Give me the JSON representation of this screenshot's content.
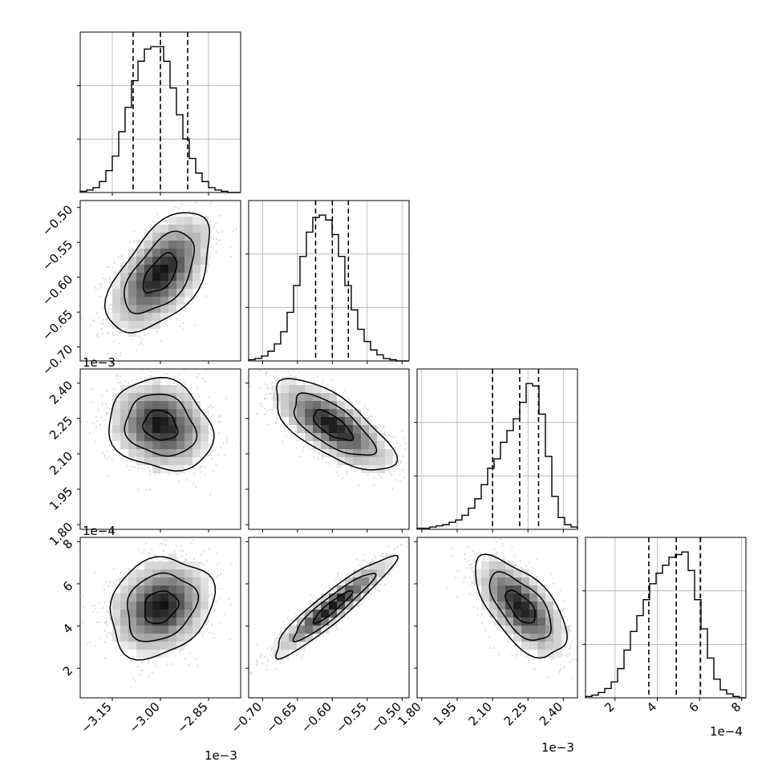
{
  "chart_data": {
    "type": "corner",
    "description_free": true,
    "parameters": [
      {
        "range": [
          -3.25,
          -2.75
        ],
        "ticks": [
          -3.15,
          -3.0,
          -2.85
        ],
        "tick_labels": [
          "−3.15",
          "−3.00",
          "−2.85"
        ],
        "offset": "1e−3",
        "quantiles": [
          -3.085,
          -3.0,
          -2.915
        ],
        "hist": [
          1,
          2,
          4,
          9,
          18,
          30,
          50,
          70,
          92,
          108,
          118,
          120,
          120,
          108,
          86,
          64,
          44,
          28,
          16,
          9,
          4,
          2,
          1,
          0,
          0
        ]
      },
      {
        "range": [
          -0.72,
          -0.49
        ],
        "ticks": [
          -0.7,
          -0.65,
          -0.6,
          -0.55,
          -0.5
        ],
        "tick_labels": [
          "−0.70",
          "−0.65",
          "−0.60",
          "−0.55",
          "−0.50"
        ],
        "offset": "",
        "quantiles": [
          -0.624,
          -0.6,
          -0.577
        ],
        "hist": [
          1,
          2,
          4,
          8,
          14,
          24,
          40,
          62,
          86,
          106,
          118,
          120,
          116,
          104,
          86,
          62,
          42,
          26,
          16,
          9,
          5,
          2,
          1,
          0,
          0
        ]
      },
      {
        "range": [
          1.78,
          2.46
        ],
        "ticks": [
          1.8,
          1.95,
          2.1,
          2.25,
          2.4
        ],
        "tick_labels": [
          "1.80",
          "1.95",
          "2.10",
          "2.25",
          "2.40"
        ],
        "offset": "1e−3",
        "quantiles": [
          2.1,
          2.215,
          2.295
        ],
        "hist": [
          1,
          1,
          2,
          3,
          4,
          6,
          8,
          12,
          18,
          26,
          38,
          52,
          60,
          74,
          84,
          94,
          108,
          124,
          122,
          98,
          62,
          28,
          10,
          4,
          2
        ]
      },
      {
        "range": [
          0.6,
          8.2
        ],
        "ticks": [
          2,
          4,
          6,
          8
        ],
        "tick_labels": [
          "2",
          "4",
          "6",
          "8"
        ],
        "offset": "1e−4",
        "quantiles": [
          3.6,
          4.9,
          6.05
        ],
        "hist": [
          1,
          2,
          4,
          7,
          12,
          22,
          36,
          50,
          62,
          74,
          86,
          94,
          100,
          106,
          108,
          110,
          96,
          74,
          52,
          30,
          14,
          6,
          3,
          1,
          0
        ]
      }
    ],
    "pairs": [
      {
        "row": 1,
        "col": 0,
        "mean": [
          -3.0,
          -0.595
        ],
        "sd": [
          0.075,
          0.04
        ],
        "rho": 0.55
      },
      {
        "row": 2,
        "col": 0,
        "mean": [
          -3.0,
          2.22
        ],
        "sd": [
          0.075,
          0.09
        ],
        "rho": -0.15
      },
      {
        "row": 2,
        "col": 1,
        "mean": [
          -0.6,
          2.22
        ],
        "sd": [
          0.04,
          0.09
        ],
        "rho": -0.7
      },
      {
        "row": 3,
        "col": 0,
        "mean": [
          -3.0,
          4.9
        ],
        "sd": [
          0.075,
          1.1
        ],
        "rho": 0.2
      },
      {
        "row": 3,
        "col": 1,
        "mean": [
          -0.6,
          4.9
        ],
        "sd": [
          0.04,
          1.1
        ],
        "rho": 0.93
      },
      {
        "row": 3,
        "col": 2,
        "mean": [
          2.22,
          4.9
        ],
        "sd": [
          0.09,
          1.1
        ],
        "rho": -0.62
      }
    ],
    "grid": true,
    "colors": {
      "line": "#000000",
      "scatter": "#bdbdbd",
      "grid": "#b0b0b0"
    }
  }
}
